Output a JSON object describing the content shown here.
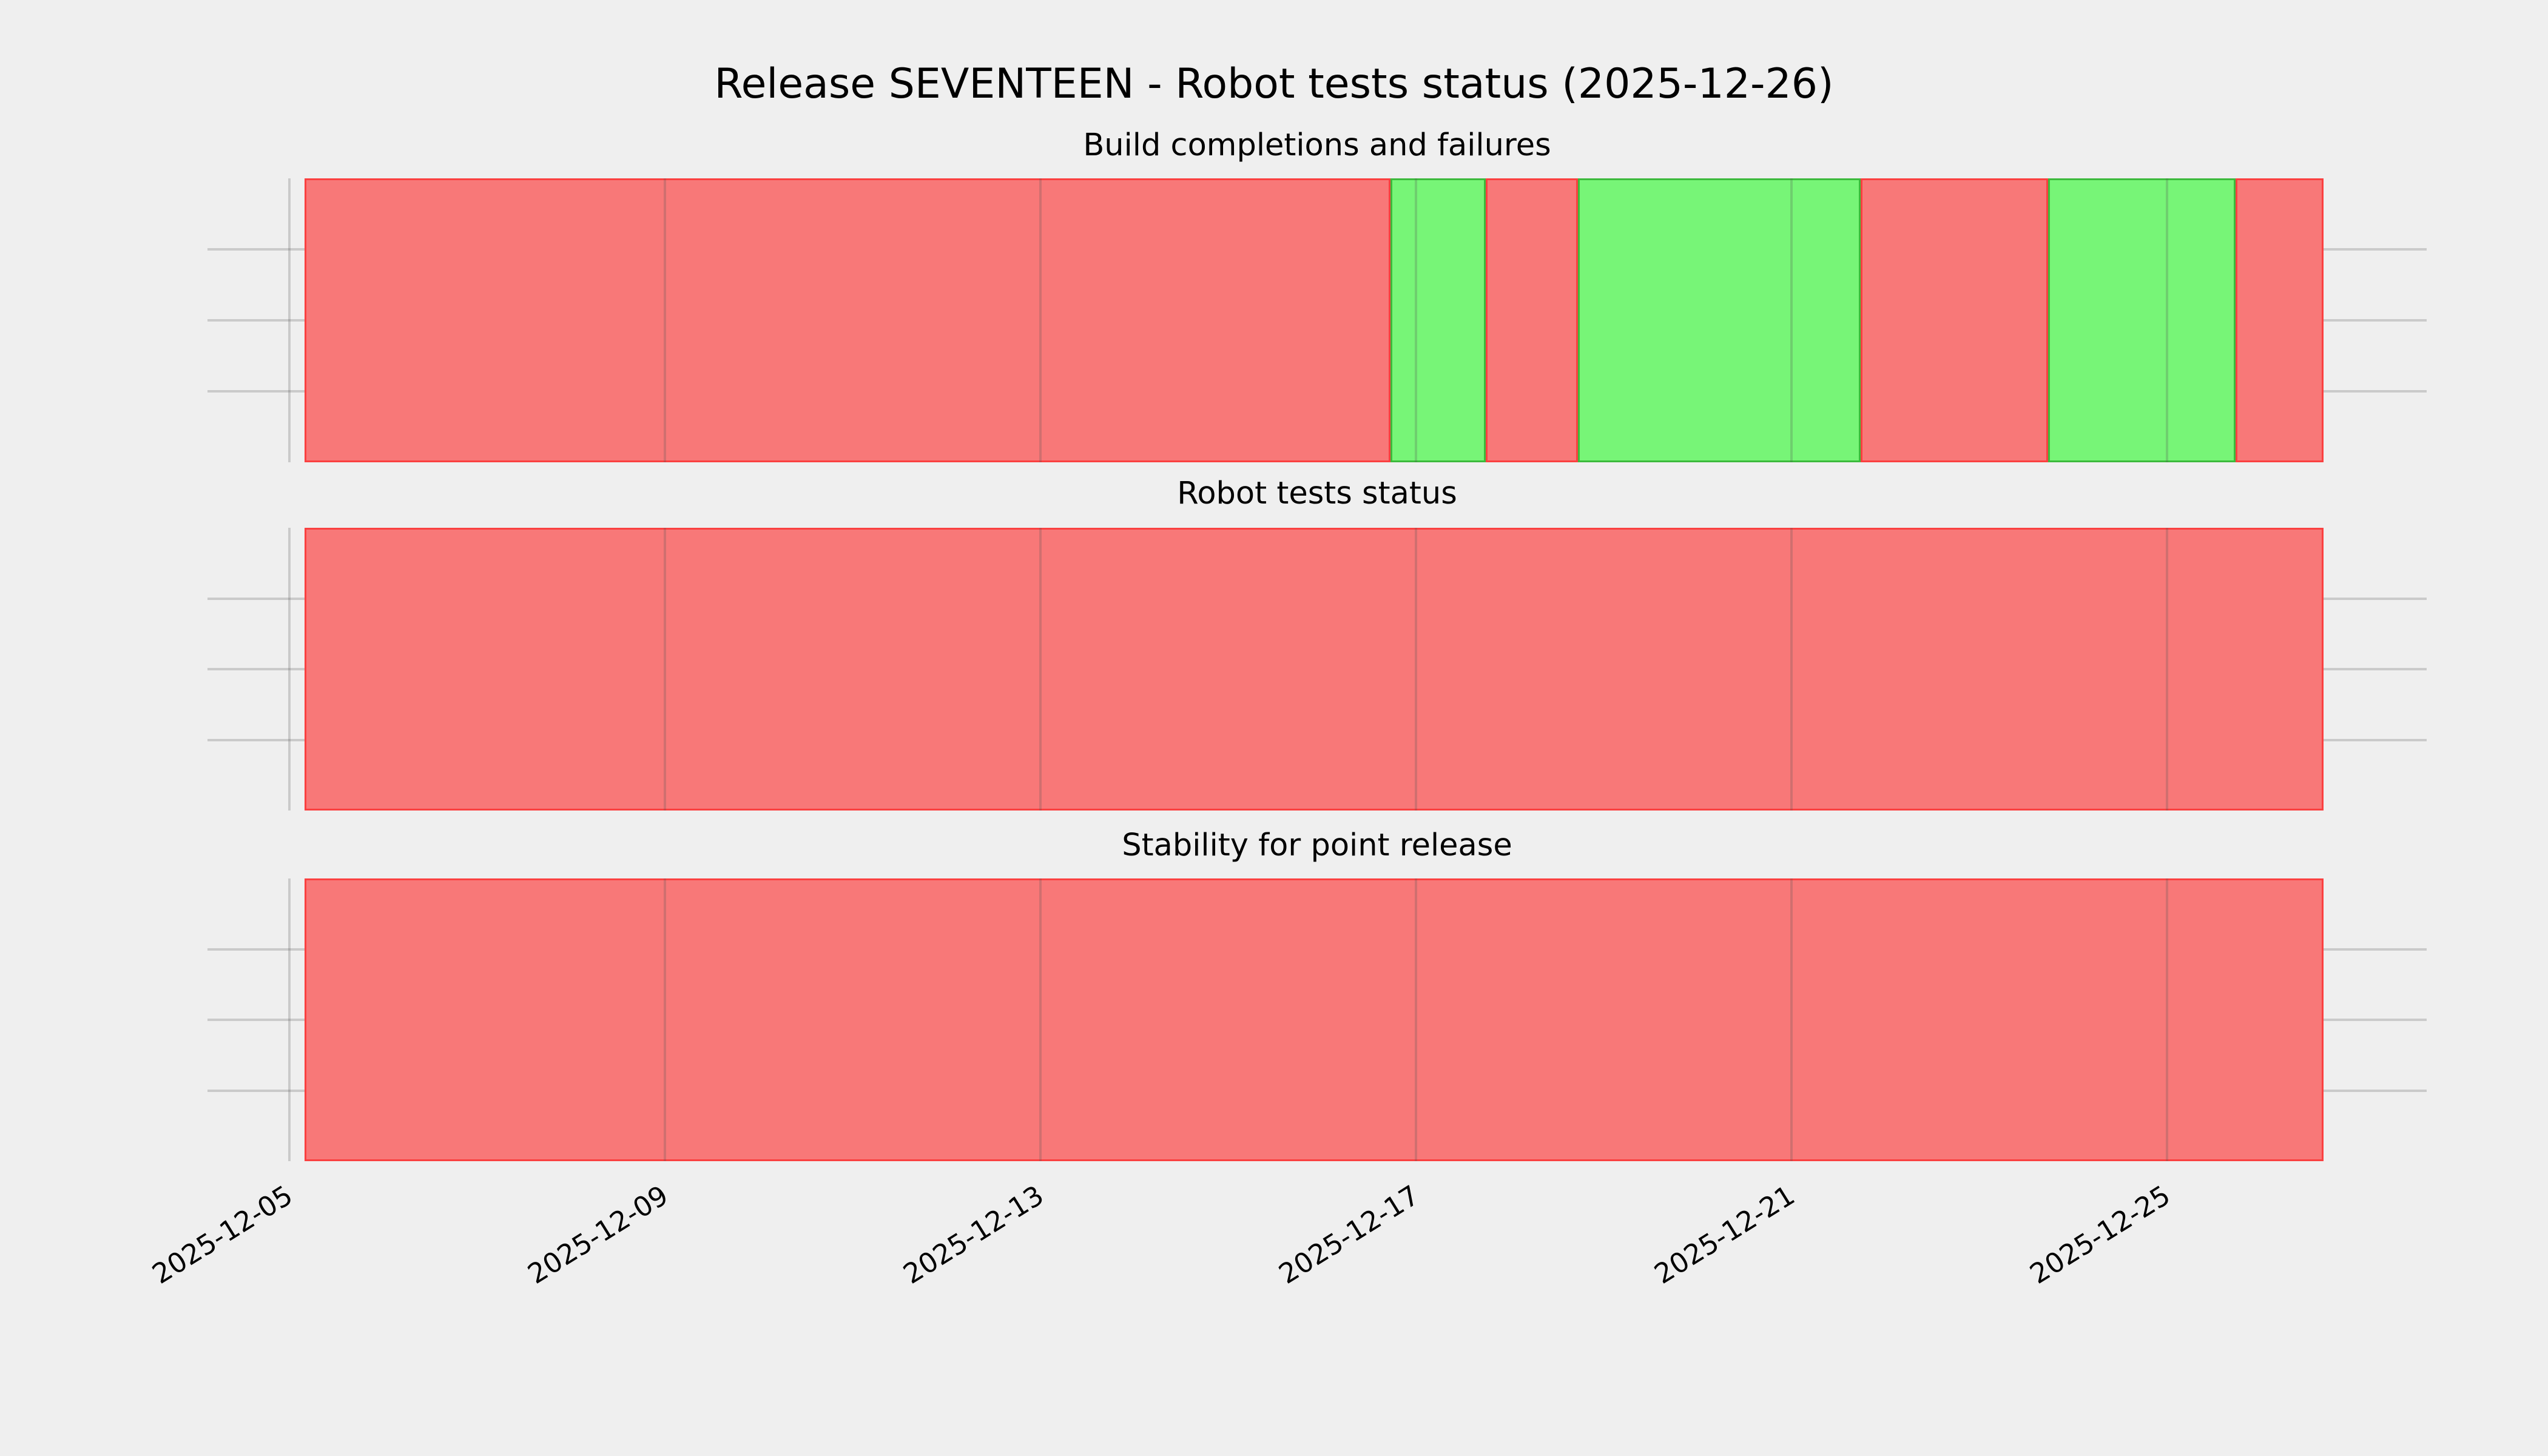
{
  "figure": {
    "title": "Release SEVENTEEN - Robot tests status (2025-12-26)",
    "background_color": "#efefef",
    "grid_color": "#cbcbcb",
    "status_colors": {
      "failure_fill": "#f87878",
      "failure_edge": "#fa4040",
      "success_fill": "#77f577",
      "success_edge": "#3cba3c"
    }
  },
  "x_axis": {
    "tick_labels": [
      "2025-12-05",
      "2025-12-09",
      "2025-12-13",
      "2025-12-17",
      "2025-12-21",
      "2025-12-25"
    ],
    "range_start": "2025-12-04",
    "range_end": "2025-12-27",
    "tick_interval_days": 4
  },
  "y_axis": {
    "rows": 4,
    "gridline_count": 3,
    "tick_labels": []
  },
  "charts": [
    {
      "title": "Build completions and failures",
      "segments": [
        {
          "status": "failure",
          "start": "2025-12-05 04:00",
          "end": "2025-12-16 17:30",
          "start_pct": 0.0,
          "end_pct": 53.79
        },
        {
          "status": "success",
          "start": "2025-12-16 17:30",
          "end": "2025-12-17 17:45",
          "start_pct": 53.79,
          "end_pct": 58.5
        },
        {
          "status": "failure",
          "start": "2025-12-17 17:45",
          "end": "2025-12-18 17:20",
          "start_pct": 58.5,
          "end_pct": 63.07
        },
        {
          "status": "success",
          "start": "2025-12-18 17:20",
          "end": "2025-12-21 17:30",
          "start_pct": 63.07,
          "end_pct": 77.07
        },
        {
          "status": "failure",
          "start": "2025-12-21 17:30",
          "end": "2025-12-23 17:30",
          "start_pct": 77.07,
          "end_pct": 86.36
        },
        {
          "status": "success",
          "start": "2025-12-23 17:30",
          "end": "2025-12-25 17:20",
          "start_pct": 86.36,
          "end_pct": 95.64
        },
        {
          "status": "failure",
          "start": "2025-12-25 17:20",
          "end": "2025-12-26 16:00",
          "start_pct": 95.64,
          "end_pct": 100.0
        }
      ]
    },
    {
      "title": "Robot tests status",
      "segments": [
        {
          "status": "failure",
          "start": "2025-12-05 04:00",
          "end": "2025-12-26 16:00",
          "start_pct": 0.0,
          "end_pct": 100.0
        }
      ]
    },
    {
      "title": "Stability for point release",
      "segments": [
        {
          "status": "failure",
          "start": "2025-12-05 04:00",
          "end": "2025-12-26 16:00",
          "start_pct": 0.0,
          "end_pct": 100.0
        }
      ]
    }
  ],
  "chart_data": [
    {
      "type": "timeline",
      "title": "Build completions and failures",
      "x": [
        "2025-12-05",
        "2025-12-09",
        "2025-12-13",
        "2025-12-17",
        "2025-12-21",
        "2025-12-25"
      ],
      "xlim": [
        "2025-12-04",
        "2025-12-27"
      ],
      "ylim": [
        0,
        4
      ],
      "grid": true,
      "legend": false,
      "series": [
        {
          "name": "failure",
          "color": "#f87878",
          "intervals": [
            [
              "2025-12-05 04:00",
              "2025-12-16 17:30"
            ],
            [
              "2025-12-17 17:45",
              "2025-12-18 17:20"
            ],
            [
              "2025-12-21 17:30",
              "2025-12-23 17:30"
            ],
            [
              "2025-12-25 17:20",
              "2025-12-26 16:00"
            ]
          ]
        },
        {
          "name": "success",
          "color": "#77f577",
          "intervals": [
            [
              "2025-12-16 17:30",
              "2025-12-17 17:45"
            ],
            [
              "2025-12-18 17:20",
              "2025-12-21 17:30"
            ],
            [
              "2025-12-23 17:30",
              "2025-12-25 17:20"
            ]
          ]
        }
      ]
    },
    {
      "type": "timeline",
      "title": "Robot tests status",
      "x": [
        "2025-12-05",
        "2025-12-09",
        "2025-12-13",
        "2025-12-17",
        "2025-12-21",
        "2025-12-25"
      ],
      "xlim": [
        "2025-12-04",
        "2025-12-27"
      ],
      "ylim": [
        0,
        4
      ],
      "grid": true,
      "legend": false,
      "series": [
        {
          "name": "failure",
          "color": "#f87878",
          "intervals": [
            [
              "2025-12-05 04:00",
              "2025-12-26 16:00"
            ]
          ]
        },
        {
          "name": "success",
          "color": "#77f577",
          "intervals": []
        }
      ]
    },
    {
      "type": "timeline",
      "title": "Stability for point release",
      "x": [
        "2025-12-05",
        "2025-12-09",
        "2025-12-13",
        "2025-12-17",
        "2025-12-21",
        "2025-12-25"
      ],
      "xlim": [
        "2025-12-04",
        "2025-12-27"
      ],
      "ylim": [
        0,
        4
      ],
      "grid": true,
      "legend": false,
      "series": [
        {
          "name": "failure",
          "color": "#f87878",
          "intervals": [
            [
              "2025-12-05 04:00",
              "2025-12-26 16:00"
            ]
          ]
        },
        {
          "name": "success",
          "color": "#77f577",
          "intervals": []
        }
      ]
    }
  ]
}
